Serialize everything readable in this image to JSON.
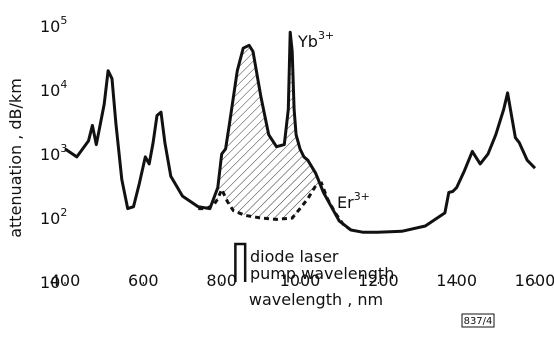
{
  "chart_data": {
    "type": "line",
    "xlabel": "wavelength , nm",
    "ylabel": "attenuation , dB/km",
    "xlim": [
      400,
      1600
    ],
    "ylim": [
      10,
      100000
    ],
    "y_scale": "log",
    "grid": false,
    "x_ticks": [
      400,
      600,
      800,
      1000,
      1200,
      1400,
      1600
    ],
    "x_tick_labels": [
      "400",
      "600",
      "800",
      "1000",
      "1200",
      "1400",
      "1600"
    ],
    "y_tick_labels": [
      "10",
      "10",
      "10",
      "10",
      "10"
    ],
    "y_tick_exponents": [
      "",
      "2",
      "3",
      "4",
      "5"
    ],
    "y_ticks": [
      10,
      100,
      1000,
      10000,
      100000
    ],
    "annotations": {
      "yb_label": "Yb",
      "yb_sup": "3+",
      "er_label": "Er",
      "er_sup": "3+",
      "pump_line1": "diode laser",
      "pump_line2": "pump wavelength",
      "figure_id": "837/4"
    },
    "pump_band": [
      835,
      860
    ],
    "series": [
      {
        "style": "solid",
        "x": [
          400,
          430,
          460,
          470,
          480,
          500,
          510,
          520,
          530,
          545,
          560,
          575,
          590,
          605,
          615,
          625,
          635,
          645,
          655,
          670,
          700,
          740,
          770,
          790,
          800,
          810,
          820,
          840,
          855,
          870,
          880,
          900,
          920,
          940,
          960,
          970,
          975,
          980,
          985,
          990,
          1000,
          1010,
          1020,
          1040,
          1060,
          1080,
          1100,
          1130,
          1160,
          1200,
          1260,
          1320,
          1370,
          1380,
          1390,
          1400,
          1420,
          1440,
          1460,
          1480,
          1500,
          1520,
          1530,
          1540,
          1550,
          1560,
          1580,
          1600
        ],
        "y": [
          1200,
          900,
          1600,
          2800,
          1400,
          6000,
          20000,
          15000,
          3000,
          400,
          140,
          150,
          350,
          900,
          700,
          1500,
          4000,
          4500,
          1500,
          450,
          220,
          150,
          140,
          300,
          1000,
          1200,
          3000,
          20000,
          45000,
          50000,
          40000,
          8000,
          2000,
          1300,
          1400,
          5000,
          80000,
          40000,
          5000,
          2000,
          1200,
          900,
          800,
          500,
          250,
          150,
          90,
          65,
          60,
          60,
          62,
          75,
          120,
          250,
          260,
          300,
          550,
          1100,
          700,
          1000,
          2000,
          5000,
          9000,
          4000,
          1800,
          1500,
          800,
          600
        ]
      },
      {
        "style": "dashed",
        "x": [
          740,
          760,
          780,
          790,
          800,
          815,
          830,
          860,
          900,
          940,
          980,
          1000,
          1020,
          1040,
          1055,
          1070,
          1090,
          1110,
          1130
        ],
        "y": [
          140,
          140,
          160,
          200,
          280,
          180,
          130,
          110,
          100,
          95,
          100,
          140,
          200,
          320,
          350,
          200,
          120,
          80,
          65
        ]
      }
    ]
  }
}
